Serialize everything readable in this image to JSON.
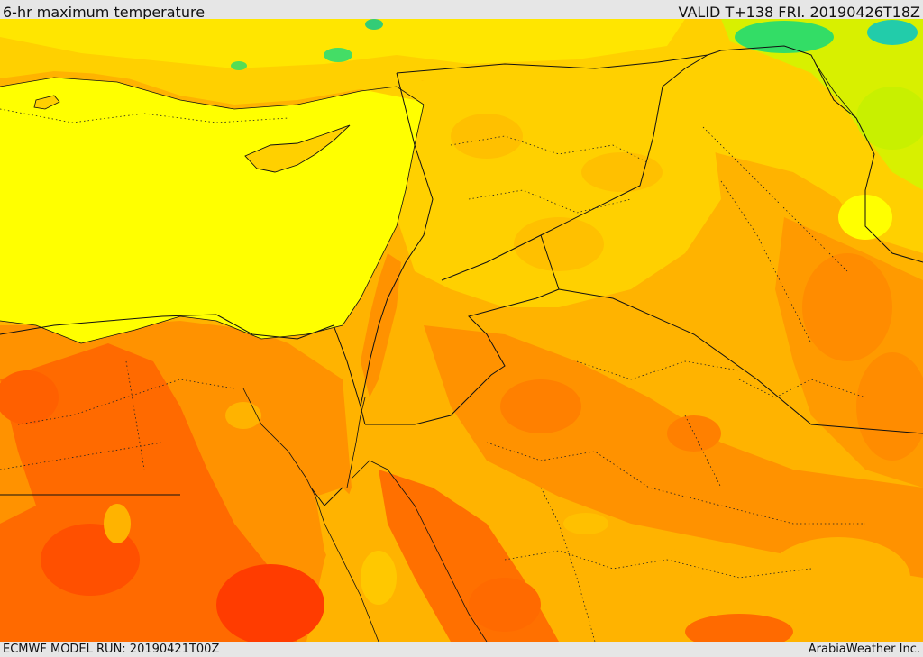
{
  "header": {
    "title": "6-hr maximum temperature",
    "valid": "VALID T+138 FRI. 20190426T18Z"
  },
  "footer": {
    "model_run": "ECMWF MODEL RUN: 20190421T00Z",
    "credit": "ArabiaWeather Inc."
  },
  "map": {
    "variable": "6-hr maximum temperature",
    "colors": {
      "sea": "#ffff00",
      "cool": "#33dd66",
      "mild": "#c8f000",
      "warm": "#ffd000",
      "hot": "#ffb300",
      "hotter": "#ff9200",
      "hottest": "#ff6a00",
      "extreme": "#ff3c00",
      "border": "#111111"
    }
  }
}
